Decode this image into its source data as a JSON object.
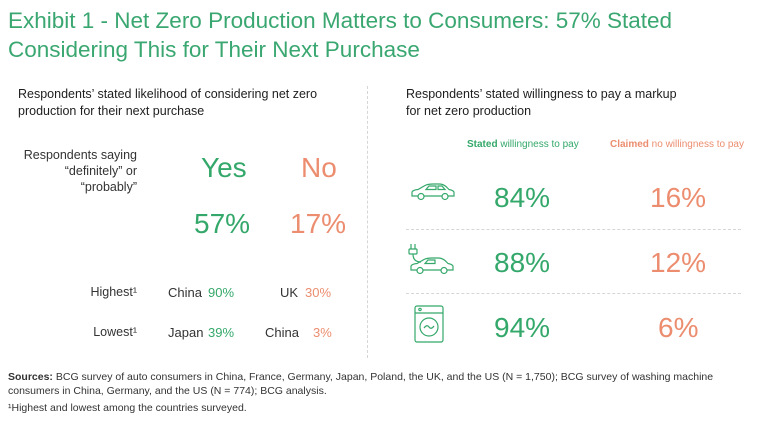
{
  "title": "Exhibit 1 - Net Zero Production Matters to Consumers: 57% Stated Considering This for Their Next Purchase",
  "title_line1": "Exhibit 1 - Net Zero Production Matters to Consumers: 57% Stated",
  "title_line2": "Considering This for Their Next Purchase",
  "colors": {
    "green": "#34a86a",
    "orange": "#ec8d6f",
    "title": "#3aa771"
  },
  "left": {
    "heading_line1": "Respondents’ stated likelihood of considering net zero",
    "heading_line2": "production for their next purchase",
    "label_line1": "Respondents saying",
    "label_line2": "“definitely” or",
    "label_line3": "“probably”",
    "yes_label": "Yes",
    "no_label": "No",
    "yes_value": "57%",
    "no_value": "17%",
    "highest_label": "Highest¹",
    "lowest_label": "Lowest¹",
    "highest_yes_country": "China",
    "highest_yes_value": "90%",
    "highest_no_country": "UK",
    "highest_no_value": "30%",
    "lowest_yes_country": "Japan",
    "lowest_yes_value": "39%",
    "lowest_no_country": "China",
    "lowest_no_value": "3%"
  },
  "right": {
    "heading_line1": "Respondents’ stated willingness to pay a markup",
    "heading_line2": "for net zero production",
    "col1_bold": "Stated",
    "col1_rest": " willingness to pay",
    "col2_bold": "Claimed",
    "col2_rest": " no willingness to pay",
    "rows": [
      {
        "icon": "car-icon",
        "stated": "84%",
        "claimed": "16%"
      },
      {
        "icon": "electric-car-icon",
        "stated": "88%",
        "claimed": "12%"
      },
      {
        "icon": "washing-machine-icon",
        "stated": "94%",
        "claimed": "6%"
      }
    ]
  },
  "footer": {
    "sources_bold": "Sources:",
    "sources_line1": " BCG survey of auto consumers in China, France, Germany, Japan, Poland, the UK, and the US (N = 1,750); BCG survey of washing machine",
    "sources_line2": "consumers in China, Germany, and the US (N = 774); BCG analysis.",
    "footnote": "¹Highest and lowest among the countries surveyed."
  },
  "chart_data": [
    {
      "type": "table",
      "title": "Respondents’ stated likelihood of considering net zero production for their next purchase",
      "columns": [
        "Yes",
        "No"
      ],
      "rows": [
        {
          "label": "Respondents saying “definitely” or “probably”",
          "values": [
            57,
            17
          ]
        },
        {
          "label": "Highest¹",
          "values": [
            {
              "country": "China",
              "value": 90
            },
            {
              "country": "UK",
              "value": 30
            }
          ]
        },
        {
          "label": "Lowest¹",
          "values": [
            {
              "country": "Japan",
              "value": 39
            },
            {
              "country": "China",
              "value": 3
            }
          ]
        }
      ]
    },
    {
      "type": "table",
      "title": "Respondents’ stated willingness to pay a markup for net zero production",
      "columns": [
        "Stated willingness to pay",
        "Claimed no willingness to pay"
      ],
      "rows": [
        {
          "label": "car-icon",
          "values": [
            84,
            16
          ]
        },
        {
          "label": "electric-car-icon",
          "values": [
            88,
            12
          ]
        },
        {
          "label": "washing-machine-icon",
          "values": [
            94,
            6
          ]
        }
      ]
    }
  ]
}
